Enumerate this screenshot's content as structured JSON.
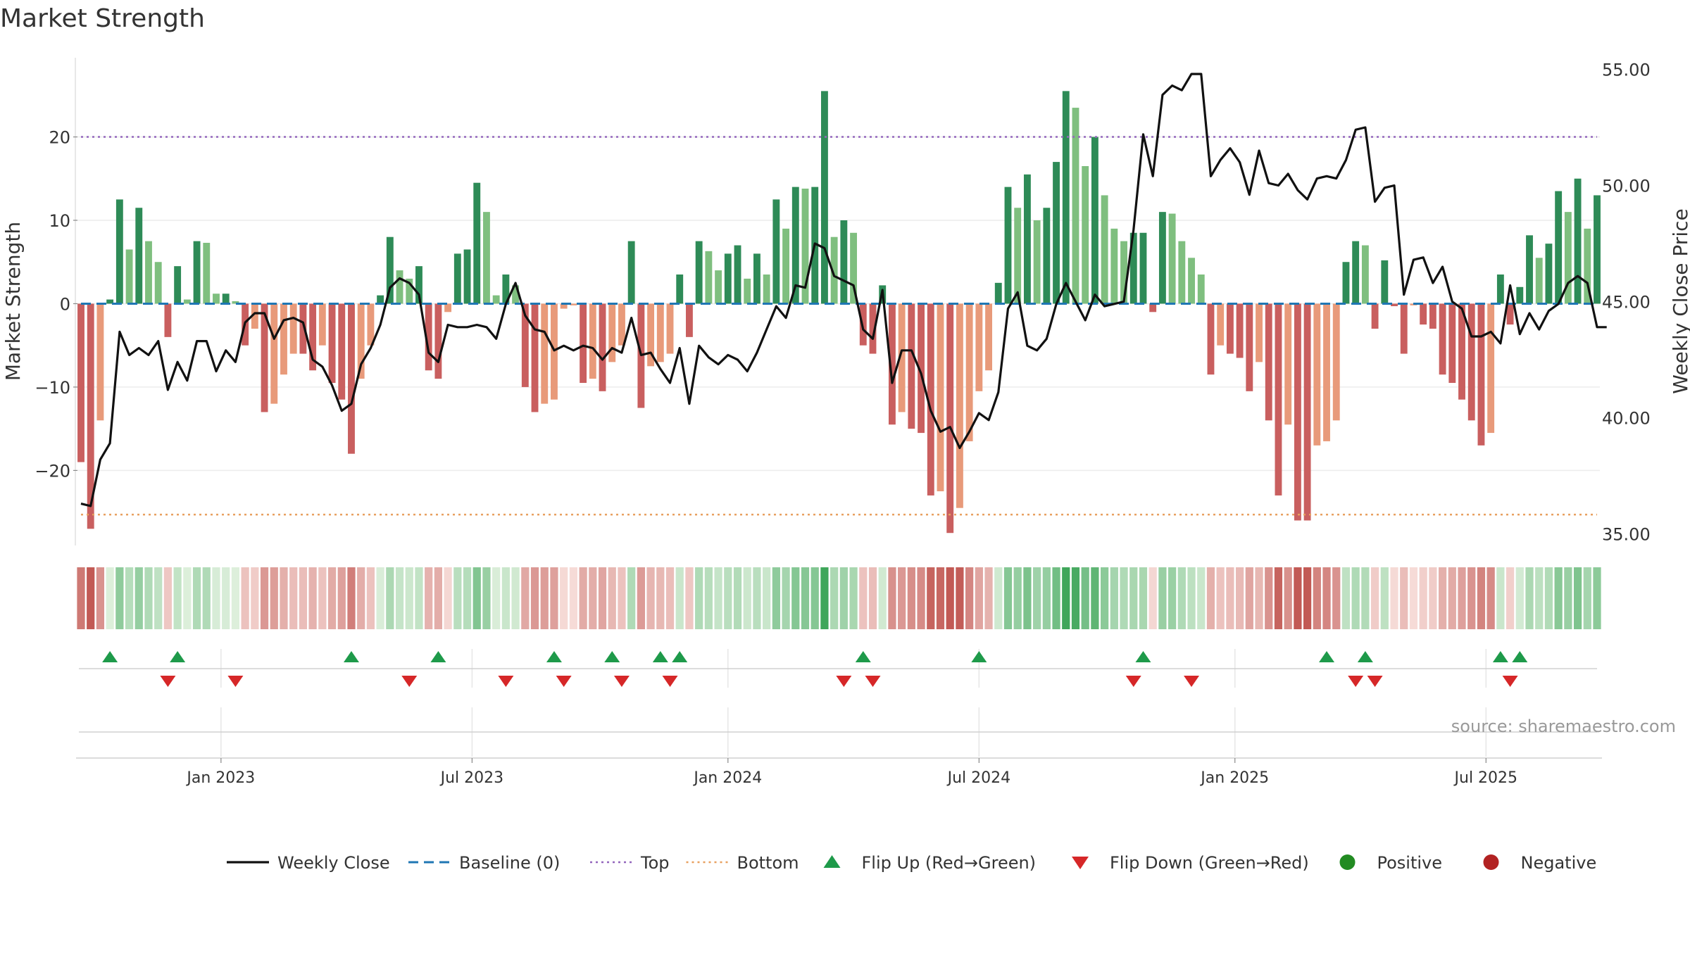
{
  "chart_data": {
    "type": "bar",
    "title": "Market Strength",
    "ylabel_left": "Market Strength",
    "ylabel_right": "Weekly Close Price",
    "source": "source: sharemaestro.com",
    "left_ylim": [
      -29,
      29.5
    ],
    "right_ylim": [
      34.5,
      55.5
    ],
    "left_ticks": [
      {
        "v": 20,
        "label": "20"
      },
      {
        "v": 10,
        "label": "10"
      },
      {
        "v": 0,
        "label": "0"
      },
      {
        "v": -10,
        "label": "−10"
      },
      {
        "v": -20,
        "label": "−20"
      }
    ],
    "right_ticks": [
      {
        "v": 55,
        "label": "55.00"
      },
      {
        "v": 50,
        "label": "50.00"
      },
      {
        "v": 45,
        "label": "45.00"
      },
      {
        "v": 40,
        "label": "40.00"
      },
      {
        "v": 35,
        "label": "35.00"
      }
    ],
    "top_level": 20,
    "bottom_level": -25.3,
    "x_index_range": [
      0,
      157
    ],
    "x_ticks": [
      {
        "i": 14.5,
        "label": "Jan 2023"
      },
      {
        "i": 40.5,
        "label": "Jul 2023"
      },
      {
        "i": 67,
        "label": "Jan 2024"
      },
      {
        "i": 93,
        "label": "Jul 2024"
      },
      {
        "i": 119.5,
        "label": "Jan 2025"
      },
      {
        "i": 145.5,
        "label": "Jul 2025"
      }
    ],
    "strength": [
      -19,
      -27,
      -14,
      0.5,
      12.5,
      6.5,
      11.5,
      7.5,
      5,
      -4,
      4.5,
      0.5,
      7.5,
      7.3,
      1.2,
      1.2,
      0.3,
      -5,
      -3,
      -13,
      -12,
      -8.5,
      -6,
      -6,
      -8,
      -5,
      -9.5,
      -11.5,
      -18,
      -9,
      -5,
      1,
      8,
      4,
      3,
      4.5,
      -8,
      -9,
      -1,
      6,
      6.5,
      14.5,
      11,
      1,
      3.5,
      2.2,
      -10,
      -13,
      -12,
      -11.5,
      -0.6,
      -0.2,
      -9.5,
      -9,
      -10.5,
      -7,
      -5,
      7.5,
      -12.5,
      -7.5,
      -7,
      -6,
      3.5,
      -4,
      7.5,
      6.3,
      4,
      6,
      7,
      3,
      6,
      3.5,
      12.5,
      9,
      14,
      13.8,
      14,
      25.5,
      8,
      10,
      8.5,
      -5,
      -6,
      2.2,
      -14.5,
      -13,
      -15,
      -15.5,
      -23,
      -22.5,
      -27.5,
      -24.5,
      -16.5,
      -10.5,
      -8,
      2.5,
      14,
      11.5,
      15.5,
      10,
      11.5,
      17,
      25.5,
      23.5,
      16.5,
      20,
      13,
      9,
      7.5,
      8.5,
      8.5,
      -1,
      11,
      10.8,
      7.5,
      5.5,
      3.5,
      -8.5,
      -5,
      -6,
      -6.5,
      -10.5,
      -7,
      -14,
      -23,
      -14.5,
      -26,
      -26,
      -17,
      -16.5,
      -14,
      5,
      7.5,
      7,
      -3,
      5.2,
      -0.3,
      -6,
      -0.2,
      -2.5,
      -3,
      -8.5,
      -9.5,
      -11.5,
      -14,
      -17,
      -15.5,
      3.5,
      -2.5,
      2,
      8.2,
      5.5,
      7.2,
      13.5,
      11,
      15,
      9,
      13
    ],
    "weekly_close": [
      36.3,
      36.2,
      38.2,
      38.9,
      43.7,
      42.7,
      43,
      42.7,
      43.3,
      41.2,
      42.4,
      41.6,
      43.3,
      43.3,
      42,
      42.9,
      42.4,
      44.1,
      44.5,
      44.5,
      43.4,
      44.2,
      44.3,
      44.1,
      42.5,
      42.2,
      41.4,
      40.3,
      40.6,
      42.3,
      43,
      44,
      45.6,
      46,
      45.8,
      45.3,
      42.8,
      42.4,
      44,
      43.9,
      43.9,
      44,
      43.9,
      43.4,
      44.9,
      45.8,
      44.4,
      43.8,
      43.7,
      42.9,
      43.1,
      42.9,
      43.1,
      43,
      42.5,
      43,
      42.8,
      44.3,
      42.7,
      42.8,
      42.1,
      41.5,
      43,
      40.6,
      43.1,
      42.6,
      42.3,
      42.7,
      42.5,
      42,
      42.8,
      43.8,
      44.8,
      44.3,
      45.7,
      45.6,
      47.5,
      47.3,
      46.1,
      45.9,
      45.7,
      43.8,
      43.4,
      45.5,
      41.5,
      42.9,
      42.9,
      41.9,
      40.3,
      39.4,
      39.6,
      38.7,
      39.4,
      40.2,
      39.9,
      41.1,
      44.7,
      45.4,
      43.1,
      42.9,
      43.4,
      44.9,
      45.8,
      45,
      44.2,
      45.3,
      44.8,
      44.9,
      45,
      48.1,
      52.2,
      50.4,
      53.9,
      54.3,
      54.1,
      54.8,
      54.8,
      50.4,
      51.1,
      51.6,
      51,
      49.6,
      51.5,
      50.1,
      50,
      50.5,
      49.8,
      49.4,
      50.3,
      50.4,
      50.3,
      51.1,
      52.4,
      52.5,
      49.3,
      49.9,
      50,
      45.3,
      46.8,
      46.9,
      45.8,
      46.5,
      45,
      44.7,
      43.5,
      43.5,
      43.7,
      43.2,
      45.7,
      43.6,
      44.5,
      43.8,
      44.6,
      44.9,
      45.8,
      46.1,
      45.8,
      43.9,
      43.9
    ],
    "flip_up_idx": [
      3,
      10,
      28,
      37,
      49,
      55,
      60,
      62,
      81,
      93,
      110,
      129,
      133,
      147,
      149
    ],
    "flip_down_idx": [
      9,
      16,
      34,
      44,
      50,
      56,
      61,
      79,
      82,
      109,
      115,
      132,
      134,
      148
    ],
    "legend": [
      {
        "label": "Weekly Close",
        "kind": "line",
        "color": "#111111"
      },
      {
        "label": "Baseline (0)",
        "kind": "dash",
        "color": "#1f77b4"
      },
      {
        "label": "Top",
        "kind": "dot",
        "color": "#9467bd"
      },
      {
        "label": "Bottom",
        "kind": "dot",
        "color": "#e8a060"
      },
      {
        "label": "Flip Up (Red→Green)",
        "kind": "tri-up",
        "color": "#1e9a4a"
      },
      {
        "label": "Flip Down (Green→Red)",
        "kind": "tri-down",
        "color": "#d62728"
      },
      {
        "label": "Positive",
        "kind": "circle",
        "color": "#228b22"
      },
      {
        "label": "Negative",
        "kind": "circle",
        "color": "#b22222"
      }
    ],
    "colors": {
      "pos_strong": "#2e8b57",
      "pos_weak": "#7fbf7f",
      "neg_strong": "#c95f5f",
      "neg_weak": "#e89a7a",
      "price_line": "#111111",
      "baseline": "#1f77b4",
      "top_line": "#9467bd",
      "bottom_line": "#e8a060",
      "flip_up": "#1e9a4a",
      "flip_down": "#d62728"
    }
  }
}
